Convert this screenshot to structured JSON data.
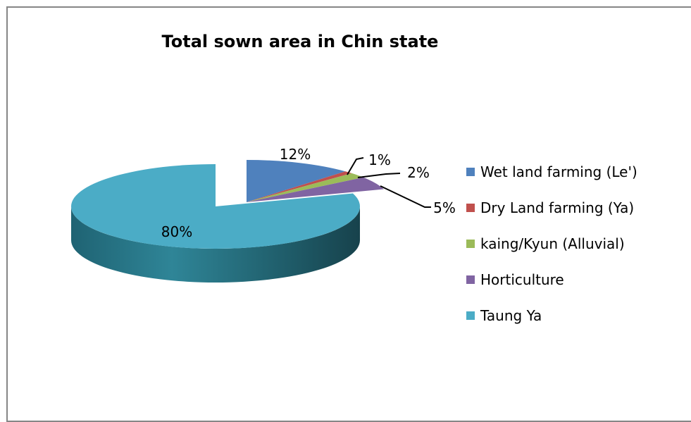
{
  "chart_data": {
    "type": "pie",
    "title": "Total sown area in Chin state",
    "slices": [
      {
        "label": "Wet land farming (Le')",
        "value": 12,
        "display": "12%",
        "color": "#4F81BD"
      },
      {
        "label": "Dry Land farming (Ya)",
        "value": 1,
        "display": "1%",
        "color": "#C0504D"
      },
      {
        "label": "kaing/Kyun (Alluvial)",
        "value": 2,
        "display": "2%",
        "color": "#9BBB59"
      },
      {
        "label": "Horticulture",
        "value": 5,
        "display": "5%",
        "color": "#8064A2"
      },
      {
        "label": "Taung Ya",
        "value": 80,
        "display": "80%",
        "color": "#4BACC6"
      }
    ],
    "legend_position": "right",
    "style": "3d-exploded"
  }
}
